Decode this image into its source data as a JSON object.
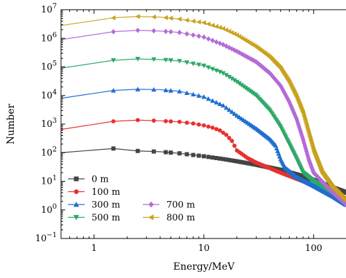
{
  "chart_data": {
    "type": "line",
    "xlabel": "Energy/MeV",
    "ylabel": "Number",
    "x_scale": "log",
    "y_scale": "log",
    "xlim": [
      0.5,
      200
    ],
    "ylim": [
      0.1,
      10000000
    ],
    "x_ticks": [
      1,
      10,
      100
    ],
    "x_tick_labels": [
      "1",
      "10",
      "100"
    ],
    "y_ticks": [
      0.1,
      1,
      10,
      100,
      1000,
      10000,
      100000,
      1000000,
      10000000
    ],
    "y_tick_labels": [
      [
        "10",
        "−1"
      ],
      [
        "10",
        "0"
      ],
      [
        "10",
        "1"
      ],
      [
        "10",
        "2"
      ],
      [
        "10",
        "3"
      ],
      [
        "10",
        "4"
      ],
      [
        "10",
        "5"
      ],
      [
        "10",
        "6"
      ],
      [
        "10",
        "7"
      ]
    ],
    "grid": false,
    "legend_position": "bottom-left",
    "series": [
      {
        "name": "0 m",
        "color": "#444444",
        "marker": "square",
        "points": [
          [
            0.5,
            100
          ],
          [
            1.5,
            140
          ],
          [
            2.5,
            115
          ],
          [
            4,
            108
          ],
          [
            6,
            95
          ],
          [
            10,
            75
          ],
          [
            15,
            60
          ],
          [
            20,
            50
          ],
          [
            30,
            38
          ],
          [
            50,
            25
          ],
          [
            80,
            15
          ],
          [
            100,
            11
          ],
          [
            150,
            6
          ],
          [
            200,
            4
          ]
        ]
      },
      {
        "name": "100 m",
        "color": "#e8312f",
        "marker": "circle",
        "points": [
          [
            0.5,
            650
          ],
          [
            1.5,
            1250
          ],
          [
            2.5,
            1380
          ],
          [
            4,
            1300
          ],
          [
            6,
            1200
          ],
          [
            8,
            1050
          ],
          [
            10,
            900
          ],
          [
            12,
            750
          ],
          [
            14,
            600
          ],
          [
            16,
            420
          ],
          [
            18,
            260
          ],
          [
            20,
            120
          ],
          [
            25,
            65
          ],
          [
            30,
            45
          ],
          [
            50,
            20
          ],
          [
            80,
            10
          ],
          [
            100,
            7
          ],
          [
            150,
            3
          ],
          [
            200,
            2
          ]
        ]
      },
      {
        "name": "300 m",
        "color": "#1f6fd0",
        "marker": "triangle-up",
        "points": [
          [
            0.5,
            8000
          ],
          [
            1.5,
            15000
          ],
          [
            2.5,
            16500
          ],
          [
            4,
            16000
          ],
          [
            6,
            14000
          ],
          [
            8,
            11000
          ],
          [
            10,
            9000
          ],
          [
            15,
            4500
          ],
          [
            20,
            2000
          ],
          [
            30,
            700
          ],
          [
            40,
            300
          ],
          [
            45,
            180
          ],
          [
            50,
            60
          ],
          [
            55,
            30
          ],
          [
            70,
            14
          ],
          [
            100,
            7
          ],
          [
            150,
            3
          ],
          [
            200,
            1.5
          ]
        ]
      },
      {
        "name": "500 m",
        "color": "#2ea86a",
        "marker": "triangle-down",
        "points": [
          [
            0.5,
            90000
          ],
          [
            1.5,
            170000
          ],
          [
            2.5,
            190000
          ],
          [
            4,
            180000
          ],
          [
            6,
            160000
          ],
          [
            10,
            110000
          ],
          [
            15,
            60000
          ],
          [
            20,
            30000
          ],
          [
            30,
            10000
          ],
          [
            40,
            3000
          ],
          [
            50,
            800
          ],
          [
            60,
            200
          ],
          [
            70,
            60
          ],
          [
            80,
            20
          ],
          [
            100,
            10
          ],
          [
            150,
            4
          ],
          [
            200,
            1.5
          ]
        ]
      },
      {
        "name": "700 m",
        "color": "#b46bd6",
        "marker": "diamond",
        "points": [
          [
            0.5,
            900000
          ],
          [
            1.5,
            1700000
          ],
          [
            2.5,
            1900000
          ],
          [
            4,
            1800000
          ],
          [
            6,
            1600000
          ],
          [
            10,
            1100000
          ],
          [
            15,
            600000
          ],
          [
            20,
            350000
          ],
          [
            30,
            150000
          ],
          [
            40,
            60000
          ],
          [
            50,
            22000
          ],
          [
            60,
            6000
          ],
          [
            70,
            1500
          ],
          [
            80,
            300
          ],
          [
            90,
            60
          ],
          [
            100,
            20
          ],
          [
            150,
            4
          ],
          [
            200,
            1.5
          ]
        ]
      },
      {
        "name": "800 m",
        "color": "#c9a21b",
        "marker": "triangle-left",
        "points": [
          [
            0.5,
            2800000
          ],
          [
            1.5,
            5200000
          ],
          [
            2.5,
            5800000
          ],
          [
            4,
            5500000
          ],
          [
            6,
            4700000
          ],
          [
            10,
            3500000
          ],
          [
            15,
            2200000
          ],
          [
            20,
            1300000
          ],
          [
            30,
            500000
          ],
          [
            40,
            220000
          ],
          [
            50,
            90000
          ],
          [
            60,
            30000
          ],
          [
            70,
            9000
          ],
          [
            80,
            2500
          ],
          [
            90,
            500
          ],
          [
            100,
            120
          ],
          [
            120,
            20
          ],
          [
            150,
            6
          ],
          [
            200,
            2
          ]
        ]
      }
    ]
  }
}
